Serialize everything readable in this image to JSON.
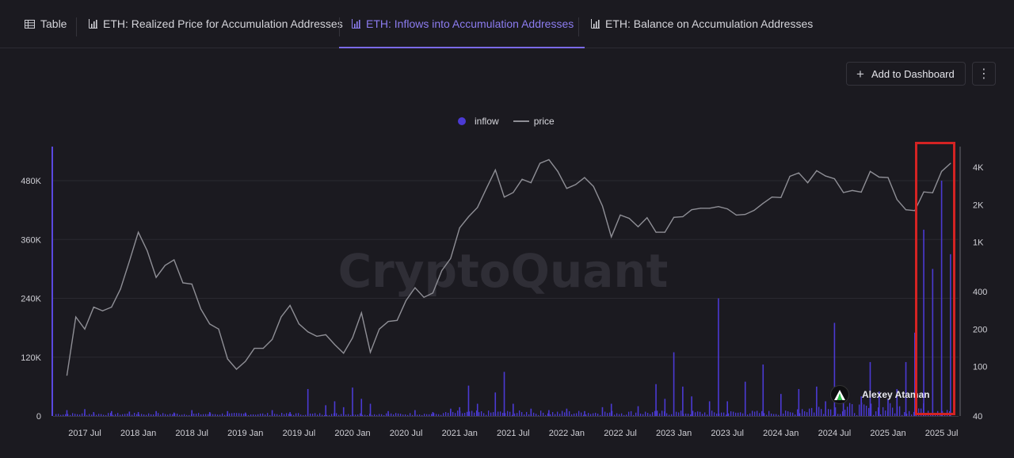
{
  "tabs": [
    {
      "label": "Table",
      "icon": "table-icon",
      "active": false
    },
    {
      "label": "ETH: Realized Price for Accumulation Addresses",
      "icon": "bar-chart-icon",
      "active": false
    },
    {
      "label": "ETH: Inflows into Accumulation Addresses",
      "icon": "bar-chart-icon",
      "active": true
    },
    {
      "label": "ETH: Balance on Accumulation Addresses",
      "icon": "bar-chart-icon",
      "active": false
    }
  ],
  "toolbar": {
    "add_label": "Add to Dashboard",
    "more_label": "⋮"
  },
  "legend": {
    "series1": "inflow",
    "series2": "price"
  },
  "watermark": "CryptoQuant",
  "attribution": "Alexey Ataman",
  "colors": {
    "inflow": "#4b3ad4",
    "price": "#8f8f96",
    "accent": "#7b6ae8",
    "highlight": "#d42323"
  },
  "chart_data": {
    "type": "bar",
    "x_ticks": [
      "2017 Jul",
      "2018 Jan",
      "2018 Jul",
      "2019 Jan",
      "2019 Jul",
      "2020 Jan",
      "2020 Jul",
      "2021 Jan",
      "2021 Jul",
      "2022 Jan",
      "2022 Jul",
      "2023 Jan",
      "2023 Jul",
      "2024 Jan",
      "2024 Jul",
      "2025 Jan",
      "2025 Jul"
    ],
    "y_left_ticks": [
      "0",
      "120K",
      "240K",
      "360K",
      "480K"
    ],
    "y_left_ticks_values": [
      0,
      120000,
      240000,
      360000,
      480000
    ],
    "y_right_ticks": [
      "40",
      "100",
      "200",
      "400",
      "1K",
      "2K",
      "4K"
    ],
    "y_right_ticks_values": [
      40,
      100,
      200,
      400,
      1000,
      2000,
      4000
    ],
    "y_right_scale": "log",
    "series": [
      {
        "name": "inflow",
        "type": "bar",
        "axis": "left",
        "points": [
          [
            "2017-05",
            12000
          ],
          [
            "2017-07",
            14000
          ],
          [
            "2017-08",
            8000
          ],
          [
            "2017-10",
            10000
          ],
          [
            "2017-12",
            9000
          ],
          [
            "2018-01",
            8000
          ],
          [
            "2018-03",
            10000
          ],
          [
            "2018-05",
            7000
          ],
          [
            "2018-07",
            12000
          ],
          [
            "2018-09",
            8000
          ],
          [
            "2018-11",
            10000
          ],
          [
            "2019-01",
            7000
          ],
          [
            "2019-04",
            12000
          ],
          [
            "2019-06",
            8000
          ],
          [
            "2019-08",
            55000
          ],
          [
            "2019-10",
            22000
          ],
          [
            "2019-11",
            30000
          ],
          [
            "2019-12",
            18000
          ],
          [
            "2020-01",
            58000
          ],
          [
            "2020-02",
            35000
          ],
          [
            "2020-03",
            25000
          ],
          [
            "2020-05",
            10000
          ],
          [
            "2020-08",
            12000
          ],
          [
            "2020-10",
            8000
          ],
          [
            "2020-12",
            15000
          ],
          [
            "2021-01",
            18000
          ],
          [
            "2021-02",
            62000
          ],
          [
            "2021-03",
            25000
          ],
          [
            "2021-05",
            48000
          ],
          [
            "2021-06",
            90000
          ],
          [
            "2021-07",
            25000
          ],
          [
            "2021-09",
            15000
          ],
          [
            "2021-11",
            12000
          ],
          [
            "2022-01",
            15000
          ],
          [
            "2022-03",
            10000
          ],
          [
            "2022-05",
            18000
          ],
          [
            "2022-06",
            25000
          ],
          [
            "2022-09",
            20000
          ],
          [
            "2022-11",
            65000
          ],
          [
            "2022-12",
            35000
          ],
          [
            "2023-01",
            130000
          ],
          [
            "2023-02",
            60000
          ],
          [
            "2023-03",
            40000
          ],
          [
            "2023-05",
            30000
          ],
          [
            "2023-06",
            240000
          ],
          [
            "2023-07",
            30000
          ],
          [
            "2023-09",
            70000
          ],
          [
            "2023-11",
            105000
          ],
          [
            "2024-01",
            45000
          ],
          [
            "2024-03",
            55000
          ],
          [
            "2024-05",
            60000
          ],
          [
            "2024-06",
            30000
          ],
          [
            "2024-07",
            190000
          ],
          [
            "2024-08",
            45000
          ],
          [
            "2024-10",
            40000
          ],
          [
            "2024-11",
            110000
          ],
          [
            "2024-12",
            50000
          ],
          [
            "2025-01",
            35000
          ],
          [
            "2025-02",
            55000
          ],
          [
            "2025-03",
            110000
          ],
          [
            "2025-04",
            170000
          ],
          [
            "2025-05",
            380000
          ],
          [
            "2025-06",
            300000
          ],
          [
            "2025-07",
            480000
          ],
          [
            "2025-08",
            330000
          ]
        ]
      },
      {
        "name": "price",
        "type": "line",
        "axis": "right",
        "points": [
          [
            "2017-05",
            85
          ],
          [
            "2017-06",
            250
          ],
          [
            "2017-07",
            200
          ],
          [
            "2017-08",
            300
          ],
          [
            "2017-09",
            280
          ],
          [
            "2017-10",
            300
          ],
          [
            "2017-11",
            420
          ],
          [
            "2017-12",
            700
          ],
          [
            "2018-01",
            1200
          ],
          [
            "2018-02",
            850
          ],
          [
            "2018-03",
            520
          ],
          [
            "2018-04",
            650
          ],
          [
            "2018-05",
            720
          ],
          [
            "2018-06",
            470
          ],
          [
            "2018-07",
            460
          ],
          [
            "2018-08",
            290
          ],
          [
            "2018-09",
            220
          ],
          [
            "2018-10",
            200
          ],
          [
            "2018-11",
            115
          ],
          [
            "2018-12",
            95
          ],
          [
            "2019-01",
            110
          ],
          [
            "2019-02",
            140
          ],
          [
            "2019-03",
            140
          ],
          [
            "2019-04",
            165
          ],
          [
            "2019-05",
            250
          ],
          [
            "2019-06",
            310
          ],
          [
            "2019-07",
            220
          ],
          [
            "2019-08",
            190
          ],
          [
            "2019-09",
            175
          ],
          [
            "2019-10",
            180
          ],
          [
            "2019-11",
            150
          ],
          [
            "2019-12",
            128
          ],
          [
            "2020-01",
            170
          ],
          [
            "2020-02",
            270
          ],
          [
            "2020-03",
            130
          ],
          [
            "2020-04",
            200
          ],
          [
            "2020-05",
            230
          ],
          [
            "2020-06",
            235
          ],
          [
            "2020-07",
            340
          ],
          [
            "2020-08",
            430
          ],
          [
            "2020-09",
            360
          ],
          [
            "2020-10",
            390
          ],
          [
            "2020-11",
            590
          ],
          [
            "2020-12",
            740
          ],
          [
            "2021-01",
            1300
          ],
          [
            "2021-02",
            1600
          ],
          [
            "2021-03",
            1900
          ],
          [
            "2021-04",
            2700
          ],
          [
            "2021-05",
            3800
          ],
          [
            "2021-06",
            2300
          ],
          [
            "2021-07",
            2500
          ],
          [
            "2021-08",
            3200
          ],
          [
            "2021-09",
            3000
          ],
          [
            "2021-10",
            4300
          ],
          [
            "2021-11",
            4600
          ],
          [
            "2021-12",
            3700
          ],
          [
            "2022-01",
            2700
          ],
          [
            "2022-02",
            2900
          ],
          [
            "2022-03",
            3300
          ],
          [
            "2022-04",
            2800
          ],
          [
            "2022-05",
            1950
          ],
          [
            "2022-06",
            1100
          ],
          [
            "2022-07",
            1650
          ],
          [
            "2022-08",
            1550
          ],
          [
            "2022-09",
            1330
          ],
          [
            "2022-10",
            1570
          ],
          [
            "2022-11",
            1200
          ],
          [
            "2022-12",
            1200
          ],
          [
            "2023-01",
            1580
          ],
          [
            "2023-02",
            1600
          ],
          [
            "2023-03",
            1820
          ],
          [
            "2023-04",
            1870
          ],
          [
            "2023-05",
            1870
          ],
          [
            "2023-06",
            1930
          ],
          [
            "2023-07",
            1850
          ],
          [
            "2023-08",
            1650
          ],
          [
            "2023-09",
            1670
          ],
          [
            "2023-10",
            1800
          ],
          [
            "2023-11",
            2050
          ],
          [
            "2023-12",
            2300
          ],
          [
            "2024-01",
            2280
          ],
          [
            "2024-02",
            3380
          ],
          [
            "2024-03",
            3600
          ],
          [
            "2024-04",
            3000
          ],
          [
            "2024-05",
            3750
          ],
          [
            "2024-06",
            3400
          ],
          [
            "2024-07",
            3230
          ],
          [
            "2024-08",
            2500
          ],
          [
            "2024-09",
            2600
          ],
          [
            "2024-10",
            2520
          ],
          [
            "2024-11",
            3700
          ],
          [
            "2024-12",
            3330
          ],
          [
            "2025-01",
            3300
          ],
          [
            "2025-02",
            2200
          ],
          [
            "2025-03",
            1820
          ],
          [
            "2025-04",
            1790
          ],
          [
            "2025-05",
            2530
          ],
          [
            "2025-06",
            2490
          ],
          [
            "2025-07",
            3700
          ],
          [
            "2025-08",
            4300
          ]
        ]
      }
    ]
  }
}
